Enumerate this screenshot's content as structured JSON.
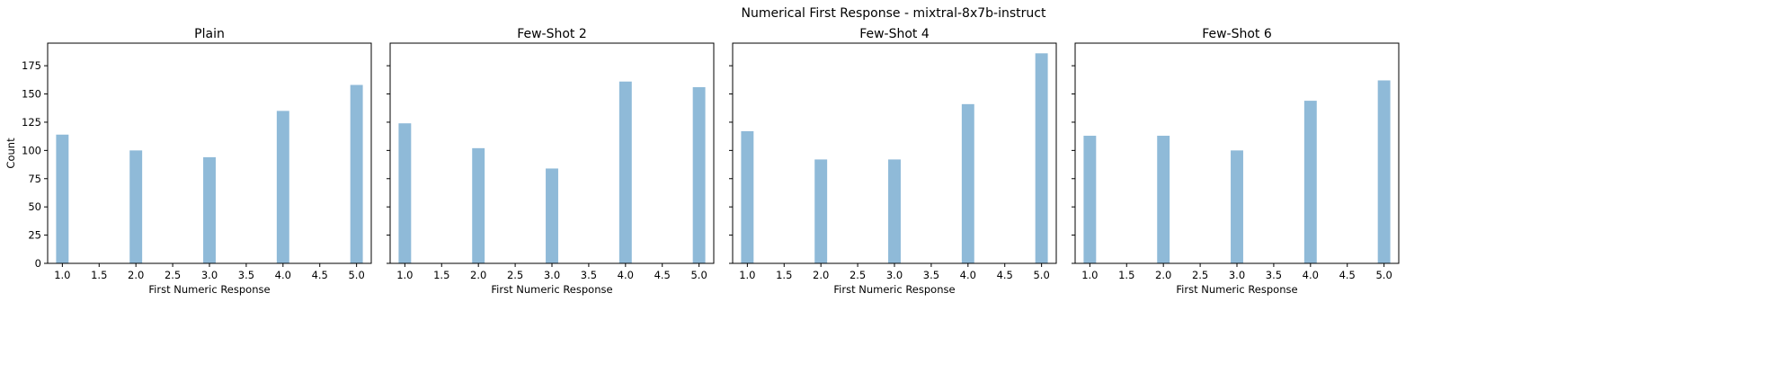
{
  "figure": {
    "title": "Numerical First Response - mixtral-8x7b-instruct",
    "colors": {
      "bar": "#8fbad8",
      "axis": "#000000",
      "background": "#ffffff"
    }
  },
  "chart_data": [
    {
      "type": "bar",
      "title": "Plain",
      "xlabel": "First Numeric Response",
      "ylabel": "Count",
      "x": [
        1,
        2,
        3,
        4,
        5
      ],
      "values": [
        114,
        100,
        94,
        135,
        158
      ],
      "xlim": [
        0.8,
        5.2
      ],
      "ylim": [
        0,
        195
      ],
      "xticks": [
        1.0,
        1.5,
        2.0,
        2.5,
        3.0,
        3.5,
        4.0,
        4.5,
        5.0
      ],
      "xtick_labels": [
        "1.0",
        "1.5",
        "2.0",
        "2.5",
        "3.0",
        "3.5",
        "4.0",
        "4.5",
        "5.0"
      ],
      "yticks": [
        0,
        25,
        50,
        75,
        100,
        125,
        150,
        175
      ],
      "ytick_labels": [
        "0",
        "25",
        "50",
        "75",
        "100",
        "125",
        "150",
        "175"
      ],
      "grid": false,
      "bin_width": 0.2
    },
    {
      "type": "bar",
      "title": "Few-Shot 2",
      "xlabel": "First Numeric Response",
      "ylabel": "",
      "x": [
        1,
        2,
        3,
        4,
        5
      ],
      "values": [
        124,
        102,
        84,
        161,
        156
      ],
      "xlim": [
        0.8,
        5.2
      ],
      "ylim": [
        0,
        195
      ],
      "xticks": [
        1.0,
        1.5,
        2.0,
        2.5,
        3.0,
        3.5,
        4.0,
        4.5,
        5.0
      ],
      "xtick_labels": [
        "1.0",
        "1.5",
        "2.0",
        "2.5",
        "3.0",
        "3.5",
        "4.0",
        "4.5",
        "5.0"
      ],
      "yticks": [
        0,
        25,
        50,
        75,
        100,
        125,
        150,
        175
      ],
      "ytick_labels": [],
      "grid": false,
      "bin_width": 0.2
    },
    {
      "type": "bar",
      "title": "Few-Shot 4",
      "xlabel": "First Numeric Response",
      "ylabel": "",
      "x": [
        1,
        2,
        3,
        4,
        5
      ],
      "values": [
        117,
        92,
        92,
        141,
        186
      ],
      "xlim": [
        0.8,
        5.2
      ],
      "ylim": [
        0,
        195
      ],
      "xticks": [
        1.0,
        1.5,
        2.0,
        2.5,
        3.0,
        3.5,
        4.0,
        4.5,
        5.0
      ],
      "xtick_labels": [
        "1.0",
        "1.5",
        "2.0",
        "2.5",
        "3.0",
        "3.5",
        "4.0",
        "4.5",
        "5.0"
      ],
      "yticks": [
        0,
        25,
        50,
        75,
        100,
        125,
        150,
        175
      ],
      "ytick_labels": [],
      "grid": false,
      "bin_width": 0.2
    },
    {
      "type": "bar",
      "title": "Few-Shot 6",
      "xlabel": "First Numeric Response",
      "ylabel": "",
      "x": [
        1,
        2,
        3,
        4,
        5
      ],
      "values": [
        113,
        113,
        100,
        144,
        162
      ],
      "xlim": [
        0.8,
        5.2
      ],
      "ylim": [
        0,
        195
      ],
      "xticks": [
        1.0,
        1.5,
        2.0,
        2.5,
        3.0,
        3.5,
        4.0,
        4.5,
        5.0
      ],
      "xtick_labels": [
        "1.0",
        "1.5",
        "2.0",
        "2.5",
        "3.0",
        "3.5",
        "4.0",
        "4.5",
        "5.0"
      ],
      "yticks": [
        0,
        25,
        50,
        75,
        100,
        125,
        150,
        175
      ],
      "ytick_labels": [],
      "grid": false,
      "bin_width": 0.2
    }
  ]
}
